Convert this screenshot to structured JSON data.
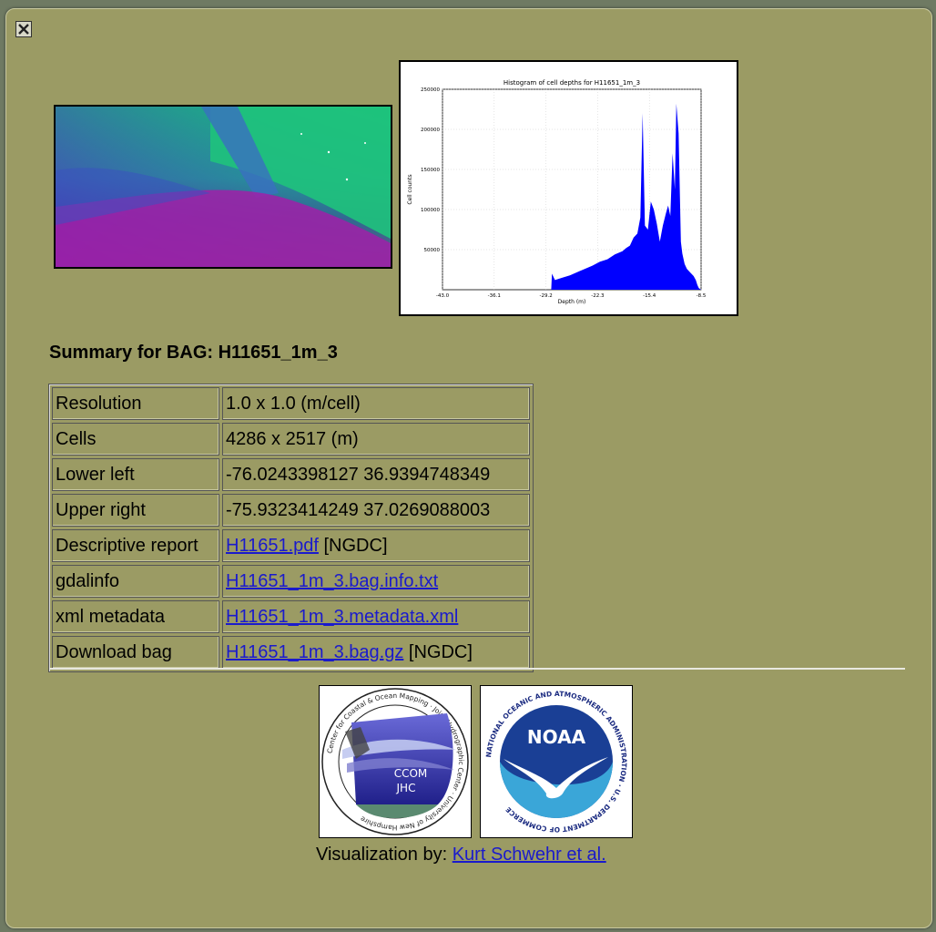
{
  "histogram": {
    "title": "Histogram of cell depths for H11651_1m_3",
    "xlabel": "Depth (m)",
    "ylabel": "Cell counts",
    "xticks": [
      "-43.0",
      "-36.1",
      "-29.2",
      "-22.3",
      "-15.4",
      "-8.5"
    ],
    "yticks": [
      "50000",
      "100000",
      "150000",
      "200000",
      "250000"
    ],
    "color": "#0000ff"
  },
  "chart_data": {
    "type": "area",
    "title": "Histogram of cell depths for H11651_1m_3",
    "xlabel": "Depth (m)",
    "ylabel": "Cell counts",
    "xlim": [
      -43.0,
      -8.5
    ],
    "ylim": [
      0,
      250000
    ],
    "x": [
      -43.0,
      -30.0,
      -28.5,
      -28.4,
      -28.0,
      -27.0,
      -26.0,
      -25.0,
      -24.0,
      -23.0,
      -22.0,
      -21.0,
      -20.0,
      -19.0,
      -18.5,
      -18.0,
      -17.5,
      -17.0,
      -16.6,
      -16.3,
      -16.0,
      -15.6,
      -15.2,
      -14.8,
      -14.4,
      -14.0,
      -13.6,
      -13.2,
      -12.9,
      -12.6,
      -12.3,
      -12.0,
      -11.8,
      -11.5,
      -11.2,
      -11.0,
      -10.7,
      -10.4,
      -10.1,
      -9.8,
      -9.5,
      -9.2,
      -9.0,
      -8.8,
      -8.5
    ],
    "values": [
      0,
      0,
      0,
      20000,
      12000,
      15000,
      18000,
      22000,
      26000,
      30000,
      35000,
      38000,
      44000,
      48000,
      52000,
      55000,
      65000,
      70000,
      90000,
      220000,
      80000,
      75000,
      110000,
      100000,
      82000,
      60000,
      80000,
      95000,
      105000,
      92000,
      170000,
      125000,
      232000,
      195000,
      60000,
      45000,
      32000,
      26000,
      23000,
      20000,
      17000,
      12000,
      6000,
      2000,
      0
    ]
  },
  "summary": {
    "title": "Summary for BAG: H11651_1m_3",
    "rows": [
      {
        "key": "Resolution",
        "value": "1.0 x 1.0 (m/cell)"
      },
      {
        "key": "Cells",
        "value": "4286 x 2517 (m)"
      },
      {
        "key": "Lower left",
        "value": "-76.0243398127 36.9394748349"
      },
      {
        "key": "Upper right",
        "value": "-75.9323414249 37.0269088003"
      },
      {
        "key": "Descriptive report",
        "link": "H11651.pdf",
        "suffix": " [NGDC]"
      },
      {
        "key": "gdalinfo",
        "link": "H11651_1m_3.bag.info.txt"
      },
      {
        "key": "xml metadata",
        "link": "H11651_1m_3.metadata.xml"
      },
      {
        "key": "Download bag",
        "link": "H11651_1m_3.bag.gz",
        "suffix": " [NGDC]"
      }
    ]
  },
  "logos": {
    "ccom": {
      "ring_text": "Center for Coastal & Ocean Mapping · Joint Hydrographic Center · University of New Hampshire",
      "line1": "CCOM",
      "line2": "JHC"
    },
    "noaa": {
      "ring_text": "NATIONAL OCEANIC AND ATMOSPHERIC ADMINISTRATION · U.S. DEPARTMENT OF COMMERCE",
      "label": "NOAA"
    }
  },
  "credit": {
    "prefix": "Visualization by: ",
    "link": "Kurt Schwehr et al."
  },
  "icons": {
    "close": "close-icon"
  }
}
